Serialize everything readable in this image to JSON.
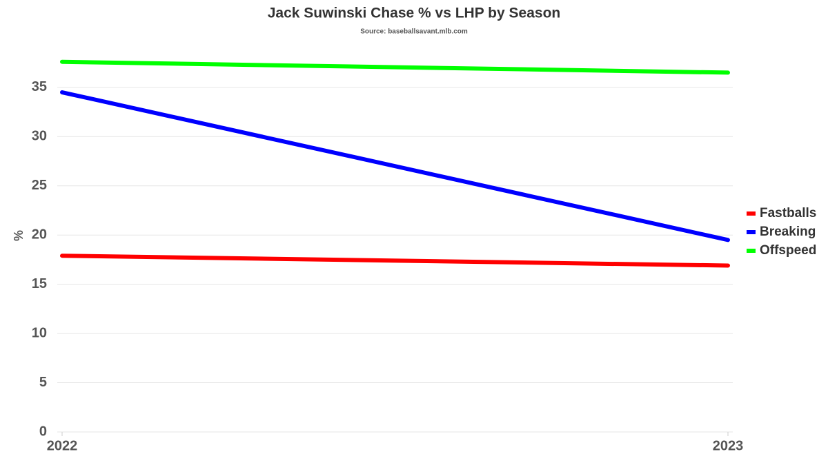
{
  "chart_data": {
    "type": "line",
    "title": "Jack Suwinski Chase % vs LHP by Season",
    "subtitle": "Source: baseballsavant.mlb.com",
    "y_label": "%",
    "categories": [
      "2022",
      "2023"
    ],
    "series": [
      {
        "name": "Fastballs",
        "color": "#ff0000",
        "values": [
          17.9,
          16.9
        ]
      },
      {
        "name": "Breaking",
        "color": "#0000ff",
        "values": [
          34.5,
          19.5
        ]
      },
      {
        "name": "Offspeed",
        "color": "#00ff00",
        "values": [
          37.6,
          36.5
        ]
      }
    ],
    "ylim": [
      0,
      38
    ],
    "yticks": [
      0,
      5,
      10,
      15,
      20,
      25,
      30,
      35
    ],
    "grid": true,
    "legend": "right"
  }
}
